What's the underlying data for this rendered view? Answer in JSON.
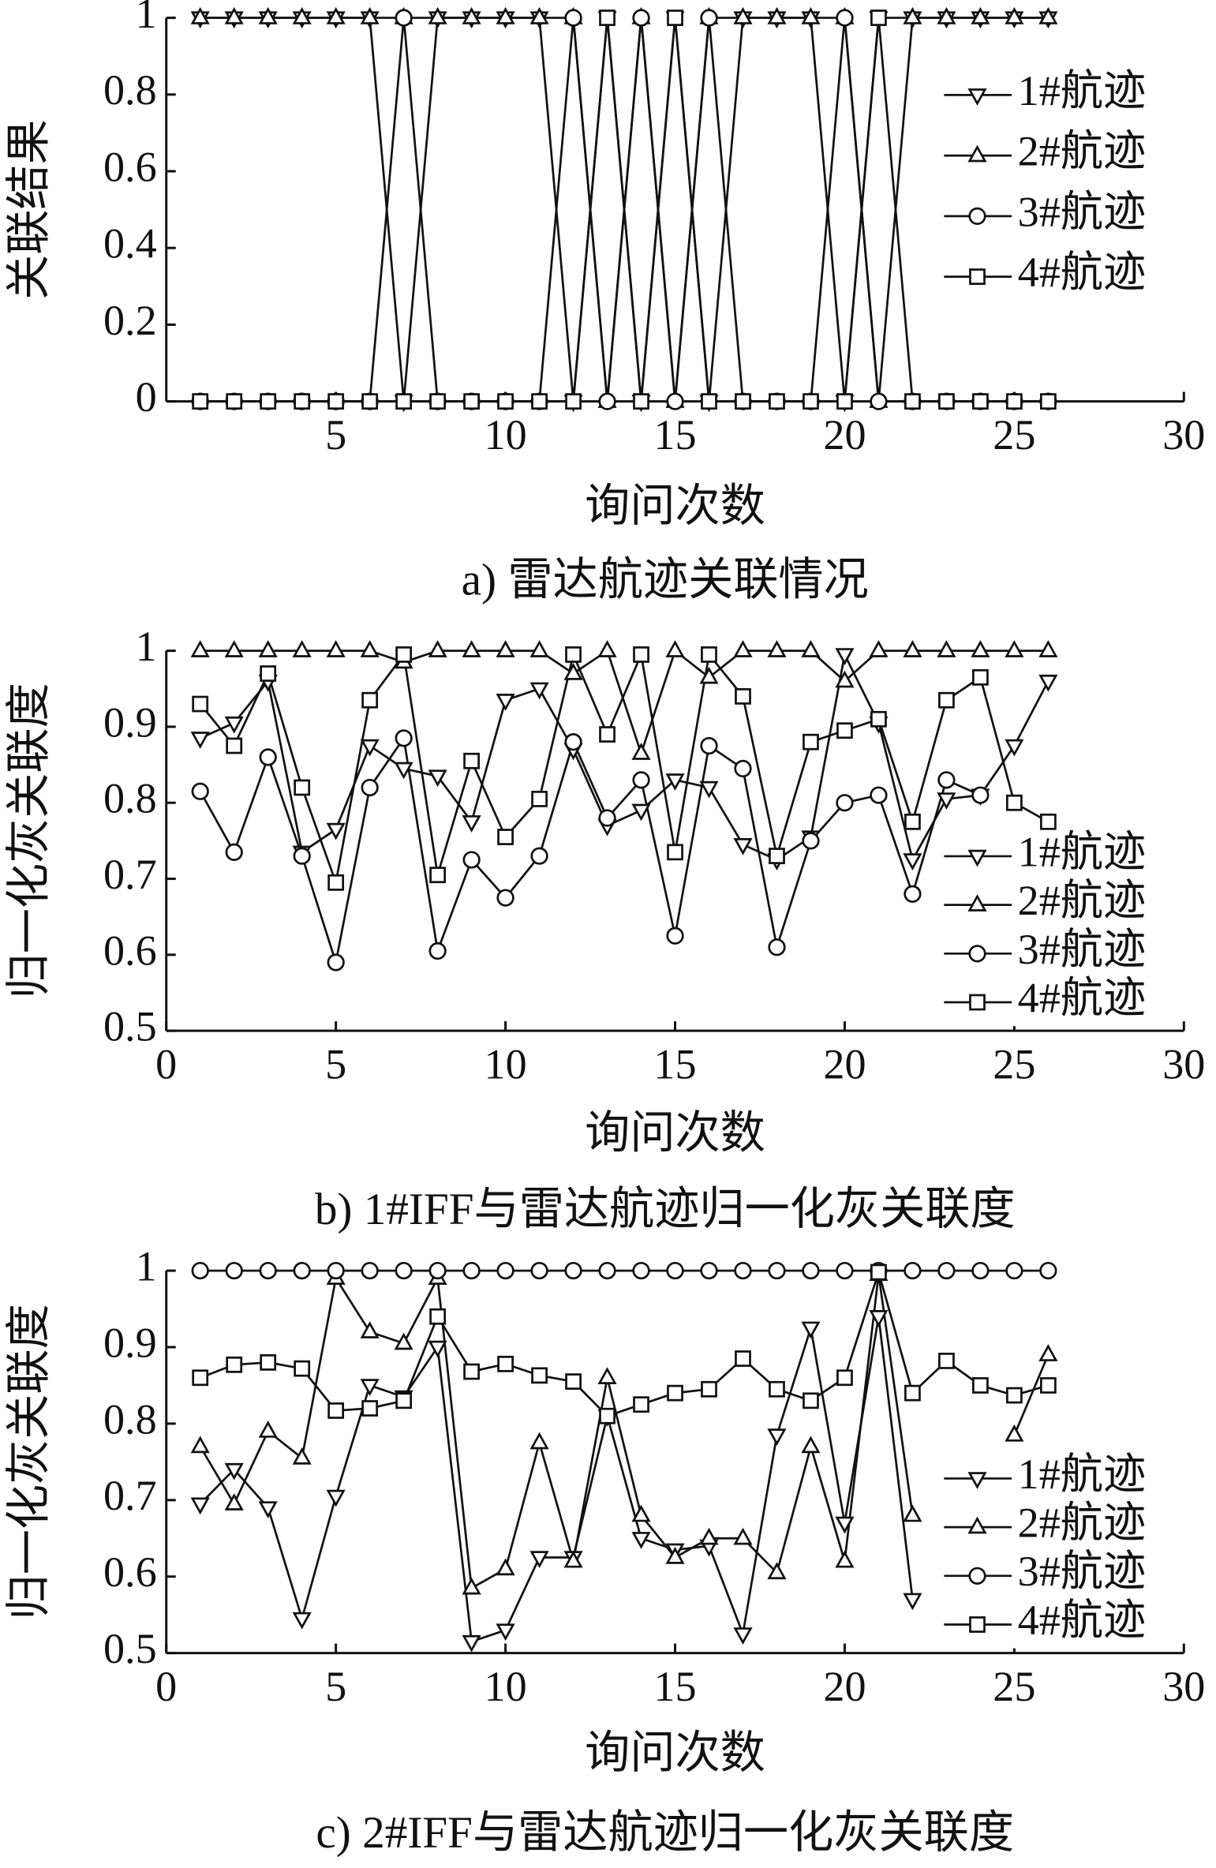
{
  "chart_data": [
    {
      "type": "line",
      "title": "a) 雷达航迹关联情况",
      "x_label": "询问次数",
      "y_label": "关联结果",
      "x": [
        1,
        2,
        3,
        4,
        5,
        6,
        7,
        8,
        9,
        10,
        11,
        12,
        13,
        14,
        15,
        16,
        17,
        18,
        19,
        20,
        21,
        22,
        23,
        24,
        25,
        26
      ],
      "xlim": [
        0,
        30
      ],
      "xticks": [
        5,
        10,
        15,
        20,
        25,
        30
      ],
      "ylim": [
        0,
        1
      ],
      "yticks": [
        0,
        0.2,
        0.4,
        0.6,
        0.8,
        1
      ],
      "legend": "center right",
      "series": [
        {
          "name": "1#航迹",
          "color": "#111111",
          "marker": "triangle-down",
          "values": [
            1,
            1,
            1,
            1,
            1,
            1,
            0,
            1,
            1,
            1,
            1,
            0,
            1,
            0,
            1,
            0,
            1,
            1,
            1,
            0,
            1,
            1,
            1,
            1,
            1,
            1
          ]
        },
        {
          "name": "2#航迹",
          "color": "#111111",
          "marker": "triangle-up",
          "values": [
            1,
            1,
            1,
            1,
            1,
            1,
            1,
            1,
            1,
            1,
            1,
            1,
            0,
            1,
            0,
            1,
            1,
            1,
            1,
            1,
            0,
            1,
            1,
            1,
            1,
            1
          ]
        },
        {
          "name": "3#航迹",
          "color": "#111111",
          "marker": "circle",
          "values": [
            0,
            0,
            0,
            0,
            0,
            0,
            1,
            0,
            0,
            0,
            0,
            1,
            0,
            1,
            0,
            1,
            0,
            0,
            0,
            1,
            0,
            0,
            0,
            0,
            0,
            0
          ]
        },
        {
          "name": "4#航迹",
          "color": "#111111",
          "marker": "square",
          "values": [
            0,
            0,
            0,
            0,
            0,
            0,
            0,
            0,
            0,
            0,
            0,
            0,
            1,
            0,
            1,
            0,
            0,
            0,
            0,
            0,
            1,
            0,
            0,
            0,
            0,
            0
          ]
        }
      ]
    },
    {
      "type": "line",
      "title": "b) 1#IFF与雷达航迹归一化灰关联度",
      "x_label": "询问次数",
      "y_label": "归一化灰关联度",
      "x": [
        1,
        2,
        3,
        4,
        5,
        6,
        7,
        8,
        9,
        10,
        11,
        12,
        13,
        14,
        15,
        16,
        17,
        18,
        19,
        20,
        21,
        22,
        23,
        24,
        25,
        26
      ],
      "xlim": [
        0,
        30
      ],
      "xticks": [
        0,
        5,
        10,
        15,
        20,
        25,
        30
      ],
      "ylim": [
        0.5,
        1
      ],
      "yticks": [
        0.5,
        0.6,
        0.7,
        0.8,
        0.9,
        1
      ],
      "legend": "lower right",
      "series": [
        {
          "name": "1#航迹",
          "color": "#111111",
          "marker": "triangle-down",
          "values": [
            0.885,
            0.905,
            0.96,
            0.735,
            0.765,
            0.875,
            0.845,
            0.835,
            0.775,
            0.935,
            0.95,
            0.87,
            0.77,
            0.79,
            0.83,
            0.82,
            0.745,
            0.725,
            0.755,
            0.995,
            0.905,
            0.725,
            0.805,
            0.81,
            0.875,
            0.96
          ]
        },
        {
          "name": "2#航迹",
          "color": "#111111",
          "marker": "triangle-up",
          "values": [
            1,
            1,
            1,
            1,
            1,
            1,
            0.985,
            1,
            1,
            1,
            1,
            0.97,
            1,
            0.865,
            1,
            0.965,
            1,
            1,
            1,
            0.96,
            1,
            1,
            1,
            1,
            1,
            1
          ]
        },
        {
          "name": "3#航迹",
          "color": "#111111",
          "marker": "circle",
          "values": [
            0.815,
            0.735,
            0.86,
            0.73,
            0.59,
            0.82,
            0.885,
            0.605,
            0.725,
            0.675,
            0.73,
            0.88,
            0.78,
            0.83,
            0.625,
            0.875,
            0.845,
            0.61,
            0.75,
            0.8,
            0.81,
            0.68,
            0.83,
            0.81,
            null,
            null
          ]
        },
        {
          "name": "4#航迹",
          "color": "#111111",
          "marker": "square",
          "values": [
            0.93,
            0.875,
            0.97,
            0.82,
            0.695,
            0.935,
            0.995,
            0.705,
            0.855,
            0.755,
            0.805,
            0.995,
            0.89,
            0.995,
            0.735,
            0.995,
            0.94,
            0.73,
            0.88,
            0.895,
            0.91,
            0.775,
            0.935,
            0.965,
            0.8,
            0.775
          ]
        }
      ]
    },
    {
      "type": "line",
      "title": "c) 2#IFF与雷达航迹归一化灰关联度",
      "x_label": "询问次数",
      "y_label": "归一化灰关联度",
      "x": [
        1,
        2,
        3,
        4,
        5,
        6,
        7,
        8,
        9,
        10,
        11,
        12,
        13,
        14,
        15,
        16,
        17,
        18,
        19,
        20,
        21,
        22,
        23,
        24,
        25,
        26
      ],
      "xlim": [
        0,
        30
      ],
      "xticks": [
        0,
        5,
        10,
        15,
        20,
        25,
        30
      ],
      "ylim": [
        0.5,
        1
      ],
      "yticks": [
        0.5,
        0.6,
        0.7,
        0.8,
        0.9,
        1
      ],
      "legend": "lower right",
      "series": [
        {
          "name": "1#航迹",
          "color": "#111111",
          "marker": "triangle-down",
          "values": [
            0.695,
            0.74,
            0.69,
            0.545,
            0.705,
            0.85,
            0.835,
            0.9,
            0.515,
            0.53,
            0.625,
            0.625,
            0.81,
            0.65,
            0.635,
            0.64,
            0.525,
            0.785,
            0.925,
            0.67,
            0.94,
            0.57,
            null,
            null,
            null,
            null
          ]
        },
        {
          "name": "2#航迹",
          "color": "#111111",
          "marker": "triangle-up",
          "values": [
            0.77,
            0.695,
            0.79,
            0.755,
            0.99,
            0.92,
            0.905,
            0.99,
            0.585,
            0.61,
            0.775,
            0.62,
            0.86,
            0.68,
            0.625,
            0.65,
            0.65,
            0.605,
            0.77,
            0.62,
            0.995,
            0.68,
            null,
            null,
            0.785,
            0.89
          ]
        },
        {
          "name": "3#航迹",
          "color": "#111111",
          "marker": "circle",
          "values": [
            1,
            1,
            1,
            1,
            1,
            1,
            1,
            1,
            1,
            1,
            1,
            1,
            1,
            1,
            1,
            1,
            1,
            1,
            1,
            1,
            1,
            1,
            1,
            1,
            1,
            1
          ]
        },
        {
          "name": "4#航迹",
          "color": "#111111",
          "marker": "square",
          "values": [
            0.86,
            0.877,
            0.88,
            0.872,
            0.817,
            0.82,
            0.83,
            0.94,
            0.868,
            0.878,
            0.863,
            0.855,
            0.81,
            0.825,
            0.84,
            0.845,
            0.885,
            0.845,
            0.83,
            0.86,
            0.998,
            0.84,
            0.882,
            0.85,
            0.837,
            0.85
          ]
        }
      ]
    }
  ]
}
